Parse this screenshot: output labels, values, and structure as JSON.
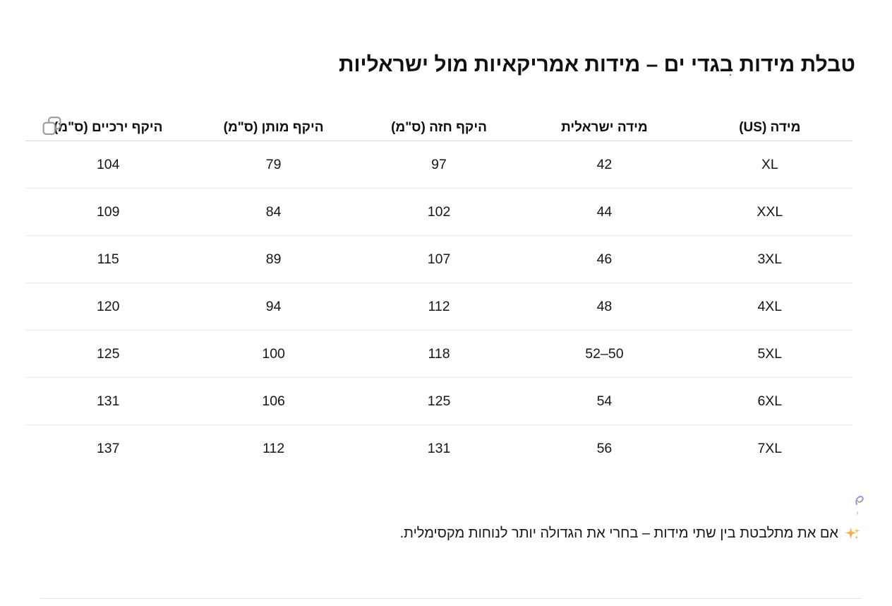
{
  "page": {
    "title": "טבלת מידות בגדי ים – מידות אמריקאיות מול ישראליות",
    "stray_dot": "."
  },
  "table": {
    "headers": [
      "מידה (US)",
      "מידה ישראלית",
      "היקף חזה (ס\"מ)",
      "היקף מותן (ס\"מ)",
      "היקף ירכיים (ס\"מ)"
    ],
    "rows": [
      [
        "XL",
        "42",
        "97",
        "79",
        "104"
      ],
      [
        "XXL",
        "44",
        "102",
        "84",
        "109"
      ],
      [
        "3XL",
        "46",
        "107",
        "89",
        "115"
      ],
      [
        "4XL",
        "48",
        "112",
        "94",
        "120"
      ],
      [
        "5XL",
        "50–52",
        "118",
        "100",
        "125"
      ],
      [
        "6XL",
        "54",
        "125",
        "106",
        "131"
      ],
      [
        "7XL",
        "56",
        "131",
        "112",
        "137"
      ]
    ]
  },
  "note": {
    "icon": "sparkles-icon",
    "text": "אם את מתלבטת בין שתי מידות – בחרי את הגדולה יותר לנוחות מקסימלית."
  },
  "toolbar": {
    "copy_table_icon": "copy-icon"
  },
  "colors": {
    "text": "#0d0d0d",
    "header_border": "#d6d6d6",
    "row_border": "#e9e9e9",
    "divider": "#e7e7e7",
    "copy_icon_gray": "#9b9b9b",
    "sparkle_amber": "#f0a33c",
    "fragment_blue": "#8d96d8"
  }
}
